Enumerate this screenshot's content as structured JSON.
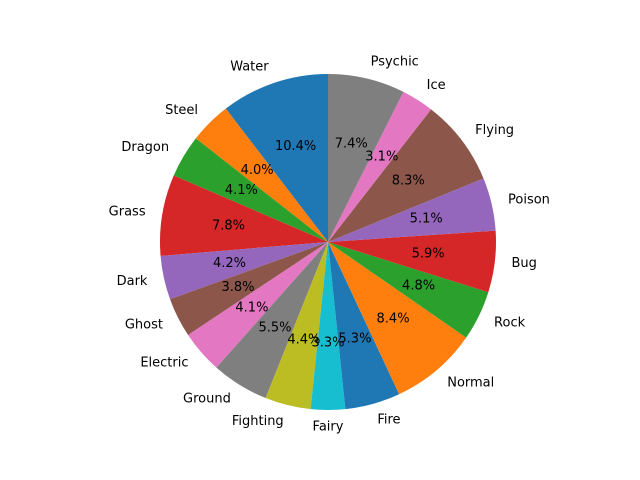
{
  "chart_data": {
    "type": "pie",
    "title": "",
    "start_angle_deg": 90,
    "direction": "counterclockwise",
    "slices": [
      {
        "label": "Water",
        "value": 10.4,
        "pct_text": "10.4%",
        "color": "#1f77b4"
      },
      {
        "label": "Steel",
        "value": 4.0,
        "pct_text": "4.0%",
        "color": "#ff7f0e"
      },
      {
        "label": "Dragon",
        "value": 4.1,
        "pct_text": "4.1%",
        "color": "#2ca02c"
      },
      {
        "label": "Grass",
        "value": 7.8,
        "pct_text": "7.8%",
        "color": "#d62728"
      },
      {
        "label": "Dark",
        "value": 4.2,
        "pct_text": "4.2%",
        "color": "#9467bd"
      },
      {
        "label": "Ghost",
        "value": 3.8,
        "pct_text": "3.8%",
        "color": "#8c564b"
      },
      {
        "label": "Electric",
        "value": 4.1,
        "pct_text": "4.1%",
        "color": "#e377c2"
      },
      {
        "label": "Ground",
        "value": 5.5,
        "pct_text": "5.5%",
        "color": "#7f7f7f"
      },
      {
        "label": "Fighting",
        "value": 4.4,
        "pct_text": "4.4%",
        "color": "#bcbd22"
      },
      {
        "label": "Fairy",
        "value": 3.3,
        "pct_text": "3.3%",
        "color": "#17becf"
      },
      {
        "label": "Fire",
        "value": 5.3,
        "pct_text": "5.3%",
        "color": "#1f77b4"
      },
      {
        "label": "Normal",
        "value": 8.4,
        "pct_text": "8.4%",
        "color": "#ff7f0e"
      },
      {
        "label": "Rock",
        "value": 4.8,
        "pct_text": "4.8%",
        "color": "#2ca02c"
      },
      {
        "label": "Bug",
        "value": 5.9,
        "pct_text": "5.9%",
        "color": "#d62728"
      },
      {
        "label": "Poison",
        "value": 5.1,
        "pct_text": "5.1%",
        "color": "#9467bd"
      },
      {
        "label": "Flying",
        "value": 8.3,
        "pct_text": "8.3%",
        "color": "#8c564b"
      },
      {
        "label": "Ice",
        "value": 3.1,
        "pct_text": "3.1%",
        "color": "#e377c2"
      },
      {
        "label": "Psychic",
        "value": 7.4,
        "pct_text": "7.4%",
        "color": "#7f7f7f"
      }
    ]
  }
}
